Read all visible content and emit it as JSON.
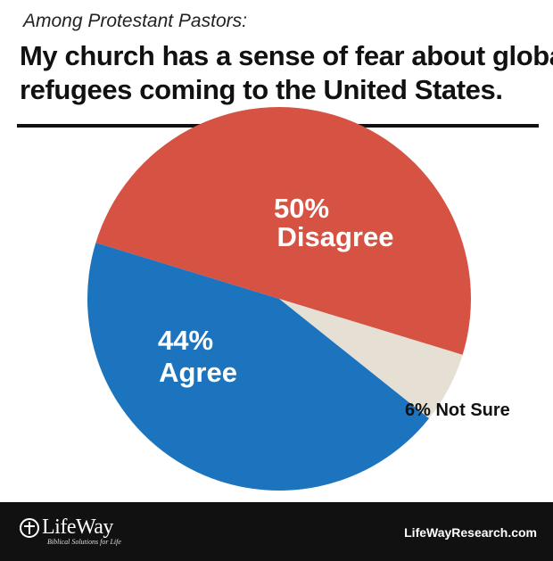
{
  "header": {
    "subtitle": "Among Protestant Pastors:",
    "title_line1": "My church has a sense of fear about global",
    "title_line2": "refugees coming to the United States."
  },
  "chart_data": {
    "type": "pie",
    "title": "My church has a sense of fear about global refugees coming to the United States.",
    "subtitle": "Among Protestant Pastors:",
    "unit": "%",
    "slices": [
      {
        "label": "Disagree",
        "value": 50,
        "pct_label": "50%",
        "color": "#d65343"
      },
      {
        "label": "Not Sure",
        "value": 6,
        "pct_label": "6% Not Sure",
        "color": "#e6e0d4"
      },
      {
        "label": "Agree",
        "value": 44,
        "pct_label": "44%",
        "color": "#1c74be"
      }
    ]
  },
  "footer": {
    "brand": "LifeWay",
    "tagline": "Biblical Solutions for Life",
    "website": "LifeWayResearch.com"
  }
}
